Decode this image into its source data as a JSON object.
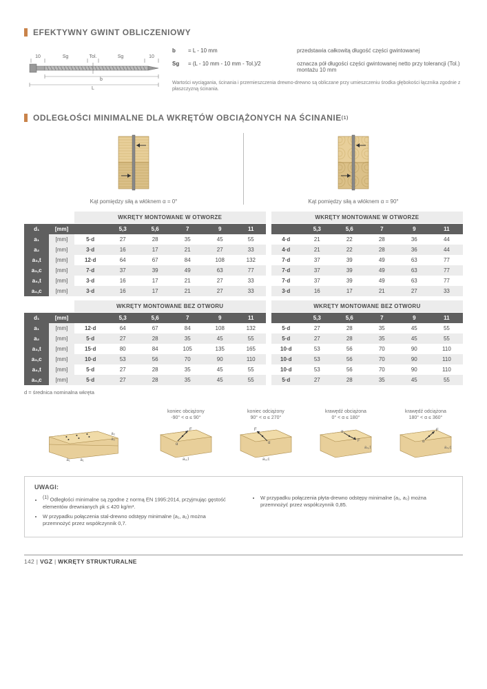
{
  "sec1": {
    "title": "EFEKTYWNY GWINT OBLICZENIOWY",
    "labels": {
      "ten_l": "10",
      "ten_r": "10",
      "tol": "Tol.",
      "sg1": "Sg",
      "sg2": "Sg",
      "b": "b",
      "L": "L"
    },
    "f1": {
      "sym": "b",
      "eq": "= L - 10 mm",
      "desc": "przedstawia całkowitą długość części gwintowanej"
    },
    "f2": {
      "sym": "Sg",
      "eq": "= (L - 10 mm - 10 mm - Tol.)/2",
      "desc": "oznacza pół długości części gwintowanej netto przy tolerancji (Tol.) montażu 10 mm"
    },
    "note": "Wartości wyciągania, ścinania i przemieszczenia drewno-drewno są obliczane przy umieszczeniu środka głębokości łącznika zgodnie z płaszczyzną ścinania."
  },
  "sec2": {
    "title": "ODLEGŁOŚCI MINIMALNE DLA WKRĘTÓW OBCIĄŻONYCH NA ŚCINANIE",
    "title_sup": "(1)",
    "cap_left": "Kąt pomiędzy siłą a włóknem α = 0°",
    "cap_right": "Kąt pomiędzy siłą a włóknem α = 90°",
    "hdr_in_hole": "WKRĘTY MONTOWANE W OTWORZE",
    "hdr_no_hole": "WKRĘTY MONTOWANE BEZ OTWORU",
    "cols_hdr": [
      "5,3",
      "5,6",
      "7",
      "9",
      "11"
    ],
    "d1": "d₁",
    "mm": "[mm]",
    "table1": {
      "rows": [
        {
          "label": "a₁",
          "shade": "w",
          "l": {
            "f": "5·d",
            "v": [
              "27",
              "28",
              "35",
              "45",
              "55"
            ]
          },
          "r": {
            "f": "4·d",
            "v": [
              "21",
              "22",
              "28",
              "36",
              "44"
            ]
          }
        },
        {
          "label": "a₂",
          "shade": "g",
          "l": {
            "f": "3·d",
            "v": [
              "16",
              "17",
              "21",
              "27",
              "33"
            ]
          },
          "r": {
            "f": "4·d",
            "v": [
              "21",
              "22",
              "28",
              "36",
              "44"
            ]
          }
        },
        {
          "label": "a₃,t",
          "shade": "w",
          "l": {
            "f": "12·d",
            "v": [
              "64",
              "67",
              "84",
              "108",
              "132"
            ]
          },
          "r": {
            "f": "7·d",
            "v": [
              "37",
              "39",
              "49",
              "63",
              "77"
            ]
          }
        },
        {
          "label": "a₃,c",
          "shade": "g",
          "l": {
            "f": "7·d",
            "v": [
              "37",
              "39",
              "49",
              "63",
              "77"
            ]
          },
          "r": {
            "f": "7·d",
            "v": [
              "37",
              "39",
              "49",
              "63",
              "77"
            ]
          }
        },
        {
          "label": "a₄,t",
          "shade": "w",
          "l": {
            "f": "3·d",
            "v": [
              "16",
              "17",
              "21",
              "27",
              "33"
            ]
          },
          "r": {
            "f": "7·d",
            "v": [
              "37",
              "39",
              "49",
              "63",
              "77"
            ]
          }
        },
        {
          "label": "a₄,c",
          "shade": "g",
          "l": {
            "f": "3·d",
            "v": [
              "16",
              "17",
              "21",
              "27",
              "33"
            ]
          },
          "r": {
            "f": "3·d",
            "v": [
              "16",
              "17",
              "21",
              "27",
              "33"
            ]
          }
        }
      ]
    },
    "table2": {
      "rows": [
        {
          "label": "a₁",
          "shade": "w",
          "l": {
            "f": "12·d",
            "v": [
              "64",
              "67",
              "84",
              "108",
              "132"
            ]
          },
          "r": {
            "f": "5·d",
            "v": [
              "27",
              "28",
              "35",
              "45",
              "55"
            ]
          }
        },
        {
          "label": "a₂",
          "shade": "g",
          "l": {
            "f": "5·d",
            "v": [
              "27",
              "28",
              "35",
              "45",
              "55"
            ]
          },
          "r": {
            "f": "5·d",
            "v": [
              "27",
              "28",
              "35",
              "45",
              "55"
            ]
          }
        },
        {
          "label": "a₃,t",
          "shade": "w",
          "l": {
            "f": "15·d",
            "v": [
              "80",
              "84",
              "105",
              "135",
              "165"
            ]
          },
          "r": {
            "f": "10·d",
            "v": [
              "53",
              "56",
              "70",
              "90",
              "110"
            ]
          }
        },
        {
          "label": "a₃,c",
          "shade": "g",
          "l": {
            "f": "10·d",
            "v": [
              "53",
              "56",
              "70",
              "90",
              "110"
            ]
          },
          "r": {
            "f": "10·d",
            "v": [
              "53",
              "56",
              "70",
              "90",
              "110"
            ]
          }
        },
        {
          "label": "a₄,t",
          "shade": "w",
          "l": {
            "f": "5·d",
            "v": [
              "27",
              "28",
              "35",
              "45",
              "55"
            ]
          },
          "r": {
            "f": "10·d",
            "v": [
              "53",
              "56",
              "70",
              "90",
              "110"
            ]
          }
        },
        {
          "label": "a₄,c",
          "shade": "g",
          "l": {
            "f": "5·d",
            "v": [
              "27",
              "28",
              "35",
              "45",
              "55"
            ]
          },
          "r": {
            "f": "5·d",
            "v": [
              "27",
              "28",
              "35",
              "45",
              "55"
            ]
          }
        }
      ]
    },
    "table_note": "d = średnica nominalna wkręta"
  },
  "blocks": [
    {
      "cap1": "",
      "cap2": "",
      "labels": [
        "a₂",
        "a₂",
        "a₁",
        "a₁"
      ]
    },
    {
      "cap1": "koniec obciążony",
      "cap2": "-90° < α ≤ 90°",
      "label": "a₃,t"
    },
    {
      "cap1": "koniec odciążony",
      "cap2": "90° < α ≤ 270°",
      "label": "a₃,c"
    },
    {
      "cap1": "krawędź obciążona",
      "cap2": "0° < α ≤ 180°",
      "label": "a₄,t"
    },
    {
      "cap1": "krawędź odciążona",
      "cap2": "180° < α ≤ 360°",
      "label": "a₄,c"
    }
  ],
  "uwagi": {
    "title": "UWAGI:",
    "left": [
      "Odległości minimalne są zgodne z normą EN 1995:2014, przyjmując gęstość elementów drewnianych ρk ≤ 420 kg/m³.",
      "W przypadku połączenia stal-drewno odstępy minimalne (a₁, a₂) można przemnożyć przez współczynnik 0,7."
    ],
    "left_sup": "(1)",
    "right": [
      "W przypadku połączenia płyta-drewno odstępy minimalne (a₁, a₂) można przemnożyć przez współczynnik 0,85."
    ]
  },
  "footer": {
    "page": "142",
    "sep": " | ",
    "code": "VGZ",
    "title": "WKRĘTY STRUKTURALNE"
  },
  "colors": {
    "accent": "#c9834a",
    "dark": "#5f5f5f",
    "grey": "#ececec",
    "wood_light": "#e8cf9a",
    "wood_dark": "#d4b878",
    "screw": "#777777"
  }
}
